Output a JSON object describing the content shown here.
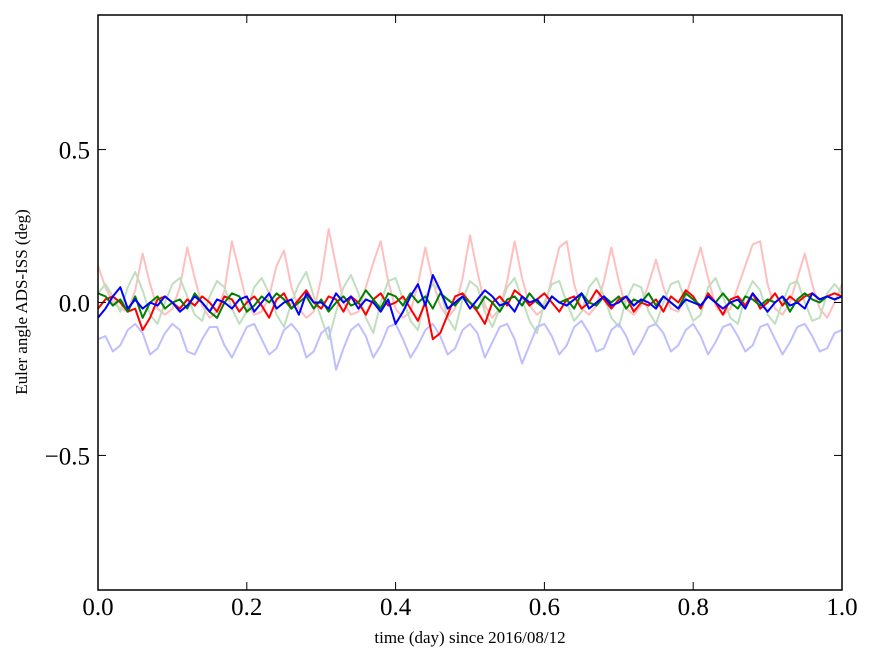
{
  "chart_data": {
    "type": "line",
    "xlabel": "time (day) since 2016/08/12",
    "ylabel": "Euler angle ADS-ISS (deg)",
    "xlim": [
      0,
      1
    ],
    "ylim": [
      -0.94,
      0.94
    ],
    "xticks": [
      {
        "value": 0,
        "label": "0.0"
      },
      0.2,
      0.4,
      0.6,
      0.8,
      {
        "value": 1,
        "label": "1.0"
      }
    ],
    "yticks": [
      {
        "value": -0.5,
        "label": "−0.5"
      },
      {
        "value": 0,
        "label": "0.0"
      },
      0.5
    ],
    "grid": false,
    "x": [
      0,
      0.01,
      0.02,
      0.03,
      0.04,
      0.05,
      0.06,
      0.07,
      0.08,
      0.09,
      0.1,
      0.11,
      0.12,
      0.13,
      0.14,
      0.15,
      0.16,
      0.17,
      0.18,
      0.19,
      0.2,
      0.21,
      0.22,
      0.23,
      0.24,
      0.25,
      0.26,
      0.27,
      0.28,
      0.29,
      0.3,
      0.31,
      0.32,
      0.33,
      0.34,
      0.35,
      0.36,
      0.37,
      0.38,
      0.39,
      0.4,
      0.41,
      0.42,
      0.43,
      0.44,
      0.45,
      0.46,
      0.47,
      0.48,
      0.49,
      0.5,
      0.51,
      0.52,
      0.53,
      0.54,
      0.55,
      0.56,
      0.57,
      0.58,
      0.59,
      0.6,
      0.61,
      0.62,
      0.63,
      0.64,
      0.65,
      0.66,
      0.67,
      0.68,
      0.69,
      0.7,
      0.71,
      0.72,
      0.73,
      0.74,
      0.75,
      0.76,
      0.77,
      0.78,
      0.79,
      0.8,
      0.81,
      0.82,
      0.83,
      0.84,
      0.85,
      0.86,
      0.87,
      0.88,
      0.89,
      0.9,
      0.91,
      0.92,
      0.93,
      0.94,
      0.95,
      0.96,
      0.97,
      0.98,
      0.99,
      1
    ],
    "series": [
      {
        "color": "#ffbfbf",
        "values": [
          0.12,
          0.05,
          0.0,
          -0.02,
          -0.03,
          0.04,
          0.16,
          0.06,
          -0.02,
          -0.04,
          -0.02,
          0.05,
          0.18,
          0.08,
          -0.01,
          -0.05,
          -0.03,
          0.04,
          0.2,
          0.1,
          0.0,
          -0.04,
          -0.03,
          0.02,
          0.12,
          0.17,
          0.05,
          -0.02,
          -0.05,
          -0.03,
          0.08,
          0.24,
          0.12,
          0.0,
          -0.04,
          -0.03,
          0.05,
          0.13,
          0.2,
          0.07,
          -0.02,
          -0.05,
          -0.03,
          0.06,
          0.18,
          0.07,
          -0.01,
          -0.05,
          -0.02,
          0.08,
          0.22,
          0.1,
          -0.01,
          -0.05,
          -0.02,
          0.07,
          0.2,
          0.08,
          -0.01,
          -0.04,
          -0.02,
          0.08,
          0.18,
          0.2,
          0.06,
          -0.02,
          -0.04,
          -0.01,
          0.07,
          0.18,
          0.07,
          -0.02,
          -0.04,
          -0.01,
          0.06,
          0.14,
          0.05,
          -0.02,
          -0.03,
          0.02,
          0.1,
          0.18,
          0.08,
          -0.01,
          -0.04,
          -0.02,
          0.05,
          0.12,
          0.19,
          0.2,
          0.06,
          -0.02,
          -0.04,
          0.0,
          0.08,
          0.16,
          0.06,
          -0.02,
          -0.05,
          0.0,
          0.06
        ]
      },
      {
        "color": "#bfdfbf",
        "values": [
          0.03,
          0.06,
          0.02,
          -0.03,
          0.05,
          0.1,
          0.04,
          -0.04,
          -0.07,
          0.0,
          0.06,
          0.08,
          0.02,
          -0.04,
          -0.06,
          0.02,
          0.07,
          0.05,
          -0.02,
          -0.07,
          -0.03,
          0.05,
          0.08,
          0.03,
          -0.04,
          -0.08,
          0.0,
          0.06,
          0.1,
          0.02,
          -0.05,
          -0.12,
          -0.03,
          0.05,
          0.09,
          0.03,
          -0.05,
          -0.1,
          0.0,
          0.07,
          0.08,
          0.01,
          -0.06,
          -0.09,
          0.02,
          0.06,
          0.04,
          -0.05,
          -0.09,
          0.01,
          0.07,
          0.05,
          -0.03,
          -0.08,
          -0.02,
          0.05,
          0.08,
          0.01,
          -0.06,
          -0.1,
          0.0,
          0.06,
          0.07,
          0.0,
          -0.06,
          -0.03,
          0.05,
          0.08,
          0.02,
          -0.05,
          -0.08,
          0.01,
          0.06,
          0.05,
          -0.03,
          -0.07,
          0.0,
          0.06,
          0.07,
          0.0,
          -0.06,
          -0.04,
          0.05,
          0.08,
          0.02,
          -0.05,
          -0.07,
          0.02,
          0.07,
          0.04,
          -0.04,
          -0.07,
          0.0,
          0.06,
          0.07,
          0.0,
          -0.06,
          -0.05,
          0.03,
          0.06,
          0.03
        ]
      },
      {
        "color": "#bfbfff",
        "values": [
          -0.12,
          -0.11,
          -0.16,
          -0.14,
          -0.09,
          -0.07,
          -0.1,
          -0.17,
          -0.15,
          -0.1,
          -0.07,
          -0.09,
          -0.16,
          -0.17,
          -0.12,
          -0.08,
          -0.08,
          -0.14,
          -0.18,
          -0.13,
          -0.08,
          -0.07,
          -0.12,
          -0.17,
          -0.15,
          -0.09,
          -0.07,
          -0.1,
          -0.18,
          -0.16,
          -0.1,
          -0.08,
          -0.22,
          -0.15,
          -0.09,
          -0.07,
          -0.11,
          -0.18,
          -0.14,
          -0.08,
          -0.07,
          -0.12,
          -0.18,
          -0.14,
          -0.09,
          -0.07,
          -0.11,
          -0.17,
          -0.15,
          -0.09,
          -0.07,
          -0.1,
          -0.18,
          -0.13,
          -0.08,
          -0.07,
          -0.12,
          -0.2,
          -0.14,
          -0.08,
          -0.07,
          -0.11,
          -0.17,
          -0.14,
          -0.08,
          -0.06,
          -0.1,
          -0.16,
          -0.15,
          -0.09,
          -0.07,
          -0.11,
          -0.17,
          -0.13,
          -0.08,
          -0.07,
          -0.1,
          -0.16,
          -0.14,
          -0.09,
          -0.07,
          -0.11,
          -0.17,
          -0.13,
          -0.08,
          -0.07,
          -0.11,
          -0.16,
          -0.14,
          -0.08,
          -0.07,
          -0.12,
          -0.17,
          -0.13,
          -0.08,
          -0.07,
          -0.11,
          -0.16,
          -0.15,
          -0.1,
          -0.09
        ]
      },
      {
        "color": "#ff0000",
        "values": [
          -0.02,
          0.01,
          0.02,
          0.0,
          -0.03,
          -0.02,
          -0.09,
          -0.05,
          0.01,
          0.02,
          0.0,
          -0.02,
          0.01,
          -0.01,
          0.02,
          0.0,
          -0.03,
          0.02,
          0.01,
          -0.03,
          0.0,
          0.02,
          -0.01,
          -0.05,
          0.01,
          0.03,
          -0.02,
          0.01,
          0.04,
          0.0,
          -0.02,
          0.02,
          0.01,
          -0.03,
          0.02,
          0.0,
          -0.04,
          0.01,
          0.03,
          -0.01,
          0.0,
          0.02,
          -0.02,
          -0.06,
          0.0,
          -0.12,
          -0.1,
          -0.04,
          0.02,
          0.03,
          0.0,
          -0.03,
          -0.07,
          0.0,
          0.02,
          -0.01,
          0.04,
          0.02,
          -0.01,
          0.01,
          0.03,
          0.0,
          -0.03,
          0.01,
          0.02,
          -0.02,
          0.0,
          0.04,
          0.01,
          -0.02,
          0.01,
          0.02,
          -0.03,
          0.0,
          -0.01,
          0.01,
          -0.03,
          0.02,
          0.0,
          0.04,
          0.02,
          -0.02,
          0.03,
          0.0,
          -0.04,
          0.01,
          0.02,
          -0.01,
          0.03,
          -0.02,
          0.0,
          0.03,
          -0.01,
          0.02,
          0.0,
          0.02,
          0.03,
          0.01,
          0.02,
          0.03,
          0.02
        ]
      },
      {
        "color": "#008000",
        "values": [
          0.03,
          0.02,
          -0.01,
          0.01,
          -0.03,
          0.02,
          -0.05,
          0.0,
          0.02,
          -0.02,
          0.0,
          0.01,
          -0.02,
          0.03,
          0.0,
          -0.03,
          -0.05,
          0.0,
          0.03,
          0.02,
          -0.03,
          -0.01,
          0.02,
          0.0,
          0.03,
          0.01,
          -0.02,
          0.0,
          0.02,
          -0.02,
          0.01,
          -0.03,
          0.0,
          0.02,
          -0.01,
          0.0,
          0.04,
          0.01,
          -0.02,
          0.03,
          0.02,
          -0.01,
          0.03,
          0.0,
          0.02,
          -0.02,
          0.03,
          0.01,
          -0.01,
          0.02,
          0.0,
          -0.02,
          0.02,
          0.0,
          -0.03,
          0.01,
          0.02,
          -0.01,
          0.03,
          0.0,
          -0.02,
          0.02,
          0.0,
          0.01,
          -0.02,
          0.03,
          0.0,
          -0.01,
          0.02,
          0.0,
          0.02,
          -0.02,
          0.01,
          0.0,
          0.03,
          -0.01,
          0.02,
          0.0,
          -0.02,
          0.03,
          0.01,
          -0.01,
          0.02,
          0.0,
          0.03,
          0.0,
          -0.02,
          0.02,
          0.01,
          -0.01,
          0.01,
          0.0,
          0.02,
          -0.03,
          0.01,
          0.03,
          0.01,
          0.0,
          0.02,
          0.01,
          0.02
        ]
      },
      {
        "color": "#0000ff",
        "values": [
          -0.05,
          -0.02,
          0.02,
          0.05,
          -0.02,
          0.01,
          -0.02,
          0.0,
          -0.01,
          0.02,
          0.0,
          -0.03,
          -0.01,
          0.02,
          0.0,
          -0.03,
          0.01,
          0.0,
          -0.02,
          0.01,
          0.02,
          -0.03,
          0.0,
          0.03,
          -0.02,
          0.0,
          0.01,
          -0.04,
          0.03,
          0.0,
          0.0,
          -0.02,
          0.03,
          0.0,
          0.02,
          -0.02,
          0.01,
          0.0,
          -0.03,
          0.01,
          -0.07,
          -0.03,
          0.02,
          0.06,
          -0.01,
          0.09,
          0.04,
          -0.02,
          0.0,
          0.02,
          -0.02,
          0.01,
          0.04,
          0.02,
          -0.01,
          0.0,
          -0.03,
          0.02,
          0.0,
          0.01,
          -0.02,
          0.02,
          0.0,
          -0.01,
          0.01,
          0.03,
          -0.02,
          0.0,
          0.02,
          -0.01,
          0.0,
          0.02,
          -0.01,
          0.01,
          0.0,
          -0.02,
          0.02,
          0.0,
          -0.02,
          0.01,
          0.0,
          -0.01,
          0.02,
          0.0,
          -0.02,
          0.0,
          0.01,
          -0.02,
          0.03,
          0.0,
          -0.03,
          0.0,
          0.02,
          -0.01,
          0.0,
          -0.02,
          0.03,
          0.01,
          0.02,
          0.01,
          0.02
        ]
      }
    ]
  }
}
